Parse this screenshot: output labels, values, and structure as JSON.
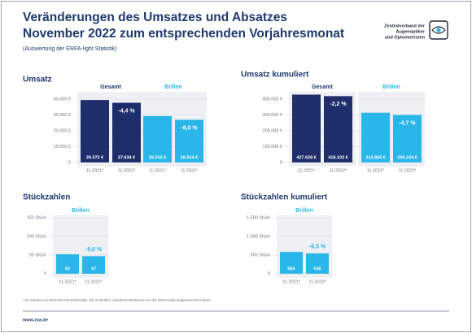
{
  "header": {
    "title_lines": [
      "Veränderungen des Umsatzes und Absatzes",
      "November 2022 zum entsprechenden Vorjahresmonat"
    ],
    "subtitle": "(Auswertung der ERFA-light Statistik)",
    "logo_lines": [
      "Zentralverband der",
      "Augenoptiker",
      "und Optometristen"
    ]
  },
  "chart_data": [
    {
      "type": "bar",
      "title": "Umsatz",
      "ylim": [
        0,
        42000
      ],
      "yticks": [
        0,
        {
          "value": 10000,
          "label": "10.000 €"
        },
        {
          "value": 20000,
          "label": "20.000 €"
        },
        {
          "value": 30000,
          "label": "30.000 €"
        },
        {
          "value": 40000,
          "label": "40.000 €"
        }
      ],
      "grid": true,
      "categories": [
        "11.2021*",
        "11.2022*"
      ],
      "series": [
        {
          "name": "Gesamt",
          "color": "#1f2d6b",
          "values": [
            39372,
            37634
          ],
          "value_labels": [
            "39.372 €",
            "37.634 €"
          ],
          "annotation": "-4,4 %"
        },
        {
          "name": "Brillen",
          "color": "#29b6e8",
          "values": [
            29253,
            26914
          ],
          "value_labels": [
            "29.253 €",
            "26.914 €"
          ],
          "annotation": "-8,0 %"
        }
      ]
    },
    {
      "type": "bar",
      "title": "Umsatz kumuliert",
      "ylim": [
        0,
        420000
      ],
      "yticks": [
        0,
        {
          "value": 100000,
          "label": "100.000 €"
        },
        {
          "value": 200000,
          "label": "200.000 €"
        },
        {
          "value": 300000,
          "label": "300.000 €"
        },
        {
          "value": 400000,
          "label": "400.000 €"
        }
      ],
      "grid": true,
      "categories": [
        "11.2021*",
        "11.2022*"
      ],
      "series": [
        {
          "name": "Gesamt",
          "color": "#1f2d6b",
          "values": [
            427628,
            418102
          ],
          "value_labels": [
            "427.628 €",
            "418.102 €"
          ],
          "annotation": "-2,2 %"
        },
        {
          "name": "Brillen",
          "color": "#29b6e8",
          "values": [
            313865,
            299234
          ],
          "value_labels": [
            "313.865 €",
            "299.234 €"
          ],
          "annotation": "-4,7 %"
        }
      ]
    },
    {
      "type": "bar",
      "title": "Stückzahlen",
      "ylim": [
        0,
        150
      ],
      "yticks": [
        0,
        {
          "value": 50,
          "label": "50 Stück"
        },
        {
          "value": 100,
          "label": "100 Stück"
        },
        {
          "value": 150,
          "label": "150 Stück"
        }
      ],
      "grid": true,
      "categories": [
        "11.2021*",
        "11.2022*"
      ],
      "series": [
        {
          "name": "Brillen",
          "color": "#29b6e8",
          "values": [
            52,
            47
          ],
          "annotation": "-9,0 %"
        }
      ]
    },
    {
      "type": "bar",
      "title": "Stückzahlen kumuliert",
      "ylim": [
        0,
        1500
      ],
      "yticks": [
        0,
        {
          "value": 500,
          "label": "500 Stück"
        },
        {
          "value": 1000,
          "label": "1.000 Stück"
        },
        {
          "value": 1500,
          "label": "1.500 Stück"
        }
      ],
      "grid": true,
      "categories": [
        "11.2021*",
        "11.2022*"
      ],
      "series": [
        {
          "name": "Brillen",
          "color": "#29b6e8",
          "values": [
            584,
            546
          ],
          "annotation": "-6,5 %"
        }
      ]
    }
  ],
  "footnote": "* Es wurden nur Betriebe berücksichtigt, die an beiden Vorjahreszeiträumen an der ERFA-light teilgenommen haben.",
  "footer": "www.zva.de"
}
